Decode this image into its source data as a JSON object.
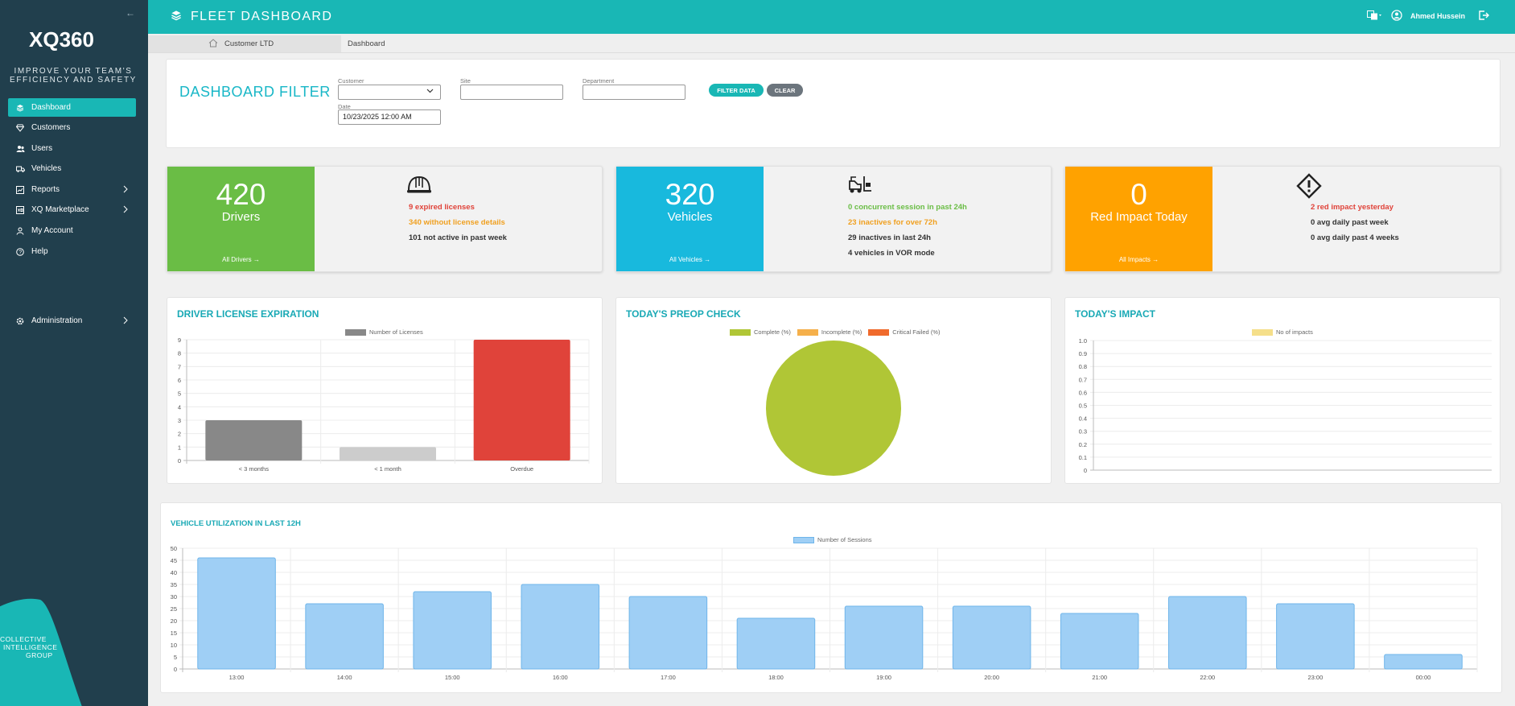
{
  "sidebar": {
    "logo": "XQ360",
    "tagline": "IMPROVE YOUR TEAM'S EFFICIENCY AND SAFETY",
    "items": [
      {
        "label": "Dashboard"
      },
      {
        "label": "Customers"
      },
      {
        "label": "Users"
      },
      {
        "label": "Vehicles"
      },
      {
        "label": "Reports"
      },
      {
        "label": "XQ Marketplace"
      },
      {
        "label": "My Account"
      },
      {
        "label": "Help"
      }
    ],
    "admin_label": "Administration",
    "brand": {
      "line1": "COLLECTIVE",
      "line2": "INTELLIGENCE",
      "line3": "GROUP"
    }
  },
  "topbar": {
    "title": "FLEET DASHBOARD",
    "user": "Ahmed Hussein"
  },
  "breadcrumb": {
    "customer": "Customer LTD",
    "page": "Dashboard"
  },
  "filter": {
    "title": "DASHBOARD FILTER",
    "customer_label": "Customer",
    "site_label": "Site",
    "department_label": "Department",
    "date_label": "Date",
    "date_value": "10/23/2025 12:00 AM",
    "filter_button": "FILTER DATA",
    "clear_button": "CLEAR"
  },
  "cards": {
    "drivers": {
      "count": "420",
      "label": "Drivers",
      "link": "All Drivers",
      "expired": "9 expired licenses",
      "no_license": "340 without license details",
      "inactive": "101 not active in past week"
    },
    "vehicles": {
      "count": "320",
      "label": "Vehicles",
      "link": "All Vehicles",
      "concurrent": "0 concurrent session in past 24h",
      "inactive72": "23 inactives for over 72h",
      "inactive24": "29 inactives in last 24h",
      "vor": "4 vehicles in VOR mode"
    },
    "impact": {
      "count": "0",
      "label": "Red Impact Today",
      "link": "All Impacts",
      "yesterday": "2 red impact yesterday",
      "avg_week": "0 avg daily past week",
      "avg_4weeks": "0 avg daily past 4 weeks"
    }
  },
  "colors": {
    "teal": "#19b7b5",
    "sidebar": "#213f4d",
    "green": "#6abd45",
    "cyan": "#18b9dd",
    "orange": "#ffa200",
    "red": "#e0433a"
  },
  "chart_data": [
    {
      "type": "bar",
      "title": "DRIVER LICENSE EXPIRATION",
      "categories": [
        "< 3 months",
        "< 1 month",
        "Overdue"
      ],
      "series": [
        {
          "name": "Number of Licenses",
          "values": [
            3,
            1,
            9
          ]
        }
      ],
      "colors": [
        "#888888",
        "#cccccc",
        "#e0433a"
      ],
      "ylim": [
        0,
        9
      ],
      "yticks": [
        "0",
        "1",
        "2",
        "3",
        "4",
        "5",
        "6",
        "7",
        "8",
        "9"
      ],
      "grid": true,
      "legend": "top"
    },
    {
      "type": "pie",
      "title": "TODAY'S PREOP CHECK",
      "categories": [
        "Complete (%)",
        "Incomplete (%)",
        "Critical Failed (%)"
      ],
      "values": [
        100,
        0,
        0
      ],
      "colors": [
        "#b0c636",
        "#f5b04b",
        "#f06a2c"
      ],
      "legend": "top"
    },
    {
      "type": "line",
      "title": "TODAY'S IMPACT",
      "series": [
        {
          "name": "No of impacts",
          "values": []
        }
      ],
      "colors": [
        "#f5df8a"
      ],
      "ylim": [
        0,
        1.0
      ],
      "yticks": [
        "1.0",
        "0.9",
        "0.8",
        "0.7",
        "0.6",
        "0.5",
        "0.4",
        "0.3",
        "0.2",
        "0.1",
        "0"
      ],
      "grid": true,
      "legend": "top"
    },
    {
      "type": "bar",
      "title": "VEHICLE UTILIZATION IN LAST 12H",
      "categories": [
        "13:00",
        "14:00",
        "15:00",
        "16:00",
        "17:00",
        "18:00",
        "19:00",
        "20:00",
        "21:00",
        "22:00",
        "23:00",
        "00:00"
      ],
      "series": [
        {
          "name": "Number of Sessions",
          "values": [
            46,
            27,
            32,
            35,
            30,
            21,
            26,
            26,
            23,
            30,
            27,
            6
          ]
        }
      ],
      "colors": [
        "#9fcff5"
      ],
      "ylim": [
        0,
        50
      ],
      "yticks": [
        "50",
        "45",
        "40",
        "35",
        "30",
        "25",
        "20",
        "15",
        "10",
        "5",
        "0"
      ],
      "grid": true,
      "legend": "top"
    }
  ]
}
